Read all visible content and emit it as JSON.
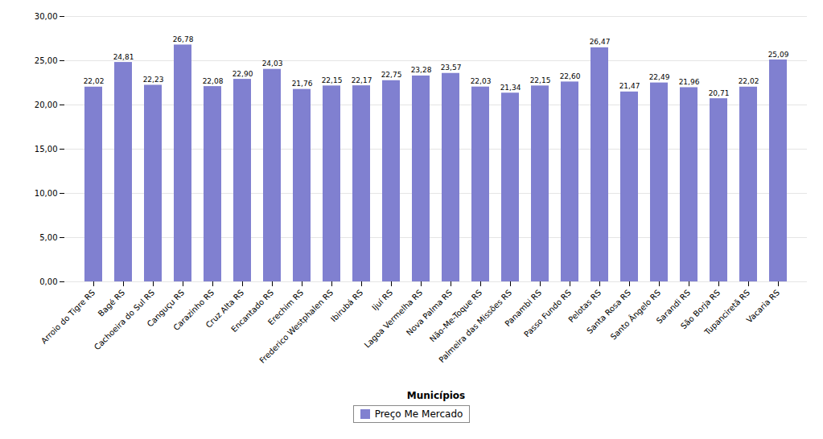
{
  "chart_data": {
    "type": "bar",
    "xlabel": "Municípios",
    "categories": [
      "Arroio do Tigre RS",
      "Bagé RS",
      "Cachoeira do Sul RS",
      "Canguçu RS",
      "Carazinho RS",
      "Cruz Alta RS",
      "Encantado RS",
      "Erechim RS",
      "Frederico Westphalen RS",
      "Ibirubá RS",
      "Ijuí RS",
      "Lagoa Vermelha RS",
      "Nova Palma RS",
      "Não-Me-Toque RS",
      "Palmeira das Missões RS",
      "Panambi RS",
      "Passo Fundo RS",
      "Pelotas RS",
      "Santa Rosa RS",
      "Santo Ângelo RS",
      "Sarandi RS",
      "São Borja RS",
      "Tupanciretã RS",
      "Vacaria RS"
    ],
    "series": [
      {
        "name": "Preço Me Mercado",
        "color": "#8080d0",
        "values": [
          22.02,
          24.81,
          22.23,
          26.78,
          22.08,
          22.9,
          24.03,
          21.76,
          22.15,
          22.17,
          22.75,
          23.28,
          23.57,
          22.03,
          21.34,
          22.15,
          22.6,
          26.47,
          21.47,
          22.49,
          21.96,
          20.71,
          22.02,
          25.09
        ],
        "value_labels": [
          "22,02",
          "24,81",
          "22,23",
          "26,78",
          "22,08",
          "22,90",
          "24,03",
          "21,76",
          "22,15",
          "22,17",
          "22,75",
          "23,28",
          "23,57",
          "22,03",
          "21,34",
          "22,15",
          "22,60",
          "26,47",
          "21,47",
          "22,49",
          "21,96",
          "20,71",
          "22,02",
          "25,09"
        ]
      }
    ],
    "ylim": [
      0,
      30
    ],
    "yticks": [
      {
        "value": 0,
        "label": "0,00"
      },
      {
        "value": 5,
        "label": "5,00"
      },
      {
        "value": 10,
        "label": "10,00"
      },
      {
        "value": 15,
        "label": "15,00"
      },
      {
        "value": 20,
        "label": "20,00"
      },
      {
        "value": 25,
        "label": "25,00"
      },
      {
        "value": 30,
        "label": "30,00"
      }
    ],
    "grid": true,
    "legend": "bottom",
    "data_labels": true
  }
}
